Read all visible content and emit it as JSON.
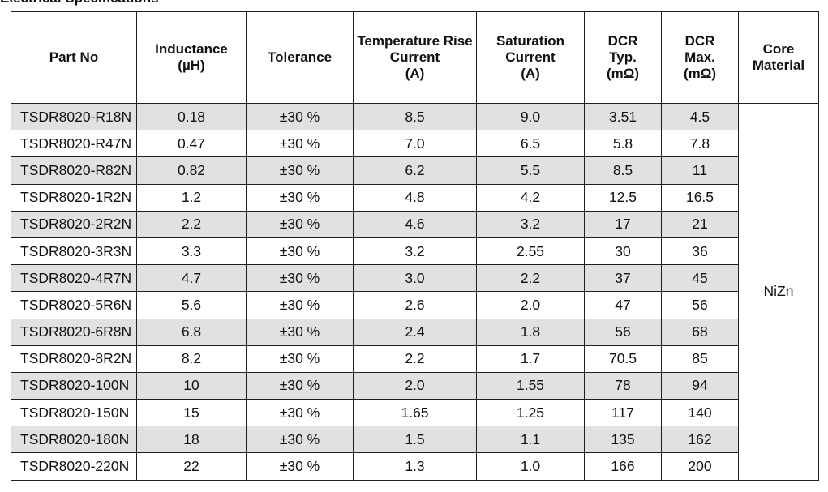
{
  "section_title": "Electrical Specifications",
  "headers": [
    [
      "Part No"
    ],
    [
      "Inductance",
      "(µH)"
    ],
    [
      "Tolerance"
    ],
    [
      "Temperature Rise",
      "Current",
      "(A)"
    ],
    [
      "Saturation",
      "Current",
      "(A)"
    ],
    [
      "DCR",
      "Typ.",
      "(mΩ)"
    ],
    [
      "DCR",
      "Max.",
      "(mΩ)"
    ],
    [
      "Core",
      "Material"
    ]
  ],
  "rows": [
    [
      "TSDR8020-R18N",
      "0.18",
      "±30 %",
      "8.5",
      "9.0",
      "3.51",
      "4.5"
    ],
    [
      "TSDR8020-R47N",
      "0.47",
      "±30 %",
      "7.0",
      "6.5",
      "5.8",
      "7.8"
    ],
    [
      "TSDR8020-R82N",
      "0.82",
      "±30 %",
      "6.2",
      "5.5",
      "8.5",
      "11"
    ],
    [
      "TSDR8020-1R2N",
      "1.2",
      "±30 %",
      "4.8",
      "4.2",
      "12.5",
      "16.5"
    ],
    [
      "TSDR8020-2R2N",
      "2.2",
      "±30 %",
      "4.6",
      "3.2",
      "17",
      "21"
    ],
    [
      "TSDR8020-3R3N",
      "3.3",
      "±30 %",
      "3.2",
      "2.55",
      "30",
      "36"
    ],
    [
      "TSDR8020-4R7N",
      "4.7",
      "±30 %",
      "3.0",
      "2.2",
      "37",
      "45"
    ],
    [
      "TSDR8020-5R6N",
      "5.6",
      "±30 %",
      "2.6",
      "2.0",
      "47",
      "56"
    ],
    [
      "TSDR8020-6R8N",
      "6.8",
      "±30 %",
      "2.4",
      "1.8",
      "56",
      "68"
    ],
    [
      "TSDR8020-8R2N",
      "8.2",
      "±30 %",
      "2.2",
      "1.7",
      "70.5",
      "85"
    ],
    [
      "TSDR8020-100N",
      "10",
      "±30 %",
      "2.0",
      "1.55",
      "78",
      "94"
    ],
    [
      "TSDR8020-150N",
      "15",
      "±30 %",
      "1.65",
      "1.25",
      "117",
      "140"
    ],
    [
      "TSDR8020-180N",
      "18",
      "±30 %",
      "1.5",
      "1.1",
      "135",
      "162"
    ],
    [
      "TSDR8020-220N",
      "22",
      "±30 %",
      "1.3",
      "1.0",
      "166",
      "200"
    ]
  ],
  "core_material": "NiZn",
  "colors": {
    "shaded_row": "#e1e1e1",
    "border": "#1f1f1f"
  }
}
